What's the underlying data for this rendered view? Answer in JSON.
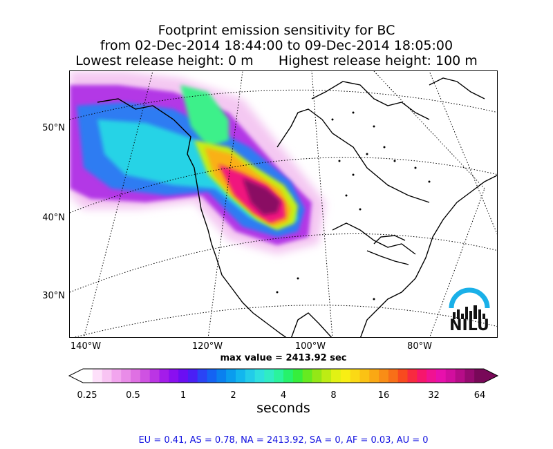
{
  "title": {
    "line1": "Footprint emission sensitivity for BC",
    "line2": "from 02-Dec-2014 18:44:00 to 09-Dec-2014 18:05:00",
    "line3_left": "Lowest release height: 0 m",
    "line3_right": "Highest release height: 100 m"
  },
  "map": {
    "lat_labels": [
      "50°N",
      "40°N",
      "30°N"
    ],
    "lon_labels": [
      "140°W",
      "120°W",
      "100°W",
      "80°W"
    ],
    "max_value": "max value = 2413.92 sec",
    "logo_text": "NILU",
    "logo_color": "#1ab0e8"
  },
  "colorbar": {
    "tick_labels": [
      "0.25",
      "0.5",
      "1",
      "2",
      "4",
      "8",
      "16",
      "32",
      "64"
    ],
    "unit": "seconds",
    "colors": [
      "#ffffff",
      "#fde0fa",
      "#f8c4f3",
      "#f2a5ee",
      "#e98ce8",
      "#df70e3",
      "#cf52e2",
      "#bb35e4",
      "#a41cea",
      "#8a0ff0",
      "#6b0ef3",
      "#4a1ff5",
      "#2a44f5",
      "#1463f3",
      "#0a80ef",
      "#0a9cee",
      "#12b6ee",
      "#22cce9",
      "#2ee0df",
      "#30ecc4",
      "#2af39d",
      "#26f26b",
      "#36ee3c",
      "#66ea20",
      "#94e716",
      "#bdec14",
      "#e2f114",
      "#f8ee14",
      "#fbd915",
      "#fbc214",
      "#faa814",
      "#f98d16",
      "#f86f18",
      "#f84a1f",
      "#f82a40",
      "#f6166c",
      "#f01292",
      "#e810ac",
      "#d20e9e",
      "#b60c88",
      "#960a70",
      "#780858"
    ]
  },
  "stats": "EU = 0.41,  AS = 0.78,  NA = 2413.92,  SA = 0,  AF = 0.03,  AU = 0"
}
